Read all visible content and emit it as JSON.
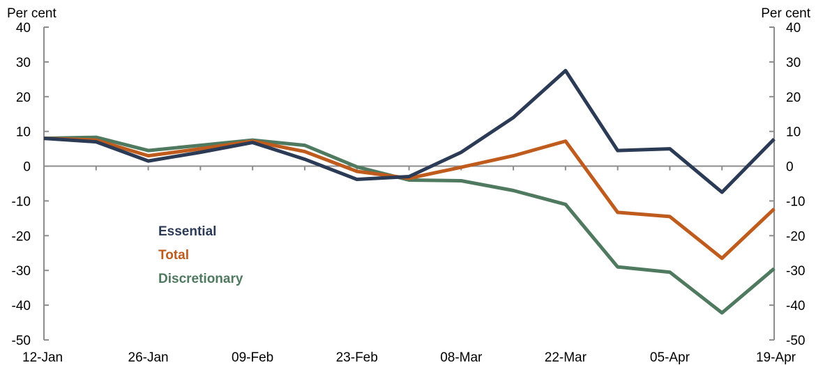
{
  "chart_data": {
    "type": "line",
    "title": "",
    "ylabel_left": "Per cent",
    "ylabel_right": "Per cent",
    "ylim": [
      -50,
      40
    ],
    "yticks": [
      40,
      30,
      20,
      10,
      0,
      -10,
      -20,
      -30,
      -40,
      -50
    ],
    "xtick_labels": [
      "12-Jan",
      "26-Jan",
      "09-Feb",
      "23-Feb",
      "08-Mar",
      "22-Mar",
      "05-Apr",
      "19-Apr"
    ],
    "x": [
      "12-Jan",
      "19-Jan",
      "26-Jan",
      "02-Feb",
      "09-Feb",
      "16-Feb",
      "23-Feb",
      "01-Mar",
      "08-Mar",
      "15-Mar",
      "22-Mar",
      "29-Mar",
      "05-Apr",
      "12-Apr",
      "19-Apr"
    ],
    "grid": false,
    "legend_position": "inside-left",
    "series": [
      {
        "name": "Essential",
        "color": "#2b3a55",
        "values": [
          8,
          7,
          1.5,
          4,
          6.8,
          2,
          -3.8,
          -3,
          4,
          14,
          27.5,
          4.5,
          5,
          -7.5,
          7.8
        ]
      },
      {
        "name": "Total",
        "color": "#c05b1e",
        "values": [
          8,
          7.5,
          3,
          5,
          7.2,
          4.2,
          -1.5,
          -3.5,
          -0.3,
          3,
          7.2,
          -13.3,
          -14.5,
          -26.5,
          -12.3
        ]
      },
      {
        "name": "Discretionary",
        "color": "#4f7a5f",
        "values": [
          8,
          8.3,
          4.5,
          6,
          7.5,
          6,
          -0.2,
          -4,
          -4.2,
          -7,
          -11,
          -29,
          -30.5,
          -42.2,
          -29.5
        ]
      }
    ]
  }
}
